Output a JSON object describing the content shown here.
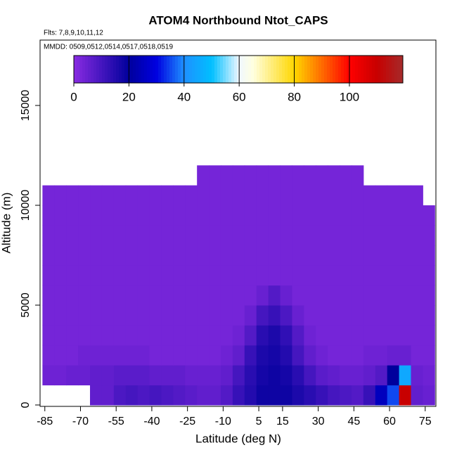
{
  "chart_data": {
    "type": "heatmap",
    "title": "ATOM4 Northbound Ntot_CAPS",
    "subtitle": "Flts: 7,8,9,10,11,12",
    "annotation": "MMDD: 0509,0512,0514,0517,0518,0519",
    "x_label": "Latitude (deg N)",
    "y_label": "Altitude (m)",
    "xlim": [
      -87,
      79.5
    ],
    "ylim": [
      -70,
      18275
    ],
    "xticks": [
      -85,
      -70,
      -55,
      -40,
      -25,
      -10,
      5,
      15,
      30,
      45,
      60,
      75
    ],
    "yticks": [
      0,
      5000,
      10000,
      15000
    ],
    "zlim": [
      0,
      119.4
    ],
    "zticks": [
      0,
      20,
      40,
      60,
      80,
      100
    ],
    "colorscale": [
      [
        0,
        "#8a2be2"
      ],
      [
        20,
        "#00009c"
      ],
      [
        30,
        "#0000e0"
      ],
      [
        40,
        "#1e90ff"
      ],
      [
        50,
        "#00bfff"
      ],
      [
        60,
        "#f0f8ff"
      ],
      [
        65,
        "#ffffe0"
      ],
      [
        80,
        "#ffd700"
      ],
      [
        100,
        "#ff0000"
      ],
      [
        110,
        "#c80000"
      ],
      [
        119.4,
        "#a52a2a"
      ]
    ],
    "lat_edges": [
      -86,
      -81,
      -76,
      -71,
      -66,
      -61,
      -56,
      -51,
      -46,
      -41,
      -36,
      -31,
      -26,
      -21,
      -16,
      -11,
      -6,
      -1,
      4,
      9,
      14,
      19,
      24,
      29,
      34,
      39,
      44,
      49,
      54,
      59,
      64,
      69,
      74,
      79
    ],
    "alt_edges": [
      0,
      1000,
      2000,
      3000,
      4000,
      5000,
      6000,
      7000,
      8000,
      9000,
      10000,
      11000,
      12000
    ],
    "z": [
      [
        null,
        null,
        null,
        null,
        6,
        6,
        9,
        10,
        9,
        10,
        9,
        8,
        7,
        6,
        6,
        8,
        12,
        15,
        18,
        18,
        18,
        16,
        14,
        12,
        10,
        9,
        8,
        12,
        25,
        35,
        110,
        6,
        5
      ],
      [
        4,
        4,
        5,
        5,
        6,
        6,
        7,
        7,
        7,
        6,
        6,
        6,
        5,
        5,
        5,
        6,
        10,
        14,
        17,
        18,
        17,
        14,
        10,
        7,
        6,
        5,
        5,
        6,
        8,
        20,
        45,
        5,
        4
      ],
      [
        3,
        3,
        3,
        4,
        4,
        4,
        4,
        4,
        4,
        3,
        3,
        3,
        3,
        3,
        3,
        4,
        6,
        12,
        16,
        17,
        15,
        10,
        6,
        4,
        3,
        3,
        3,
        4,
        4,
        5,
        5,
        3,
        3
      ],
      [
        3,
        3,
        3,
        3,
        3,
        3,
        3,
        3,
        3,
        3,
        3,
        3,
        3,
        3,
        3,
        3,
        4,
        8,
        14,
        16,
        13,
        8,
        4,
        3,
        3,
        3,
        3,
        3,
        3,
        3,
        3,
        3,
        3
      ],
      [
        3,
        3,
        3,
        3,
        3,
        3,
        3,
        3,
        3,
        3,
        3,
        3,
        3,
        3,
        3,
        3,
        3,
        5,
        10,
        12,
        9,
        5,
        3,
        3,
        3,
        3,
        3,
        3,
        3,
        3,
        3,
        3,
        3
      ],
      [
        3,
        3,
        3,
        3,
        3,
        3,
        3,
        3,
        3,
        3,
        3,
        3,
        3,
        3,
        3,
        3,
        3,
        3,
        5,
        8,
        5,
        3,
        3,
        3,
        3,
        3,
        3,
        3,
        3,
        3,
        3,
        3,
        3
      ],
      [
        3,
        3,
        3,
        3,
        3,
        3,
        3,
        3,
        3,
        3,
        3,
        3,
        3,
        3,
        3,
        3,
        3,
        3,
        3,
        3,
        3,
        3,
        3,
        3,
        3,
        3,
        3,
        3,
        3,
        3,
        3,
        3,
        3
      ],
      [
        3,
        3,
        3,
        3,
        3,
        3,
        3,
        3,
        3,
        3,
        3,
        3,
        3,
        3,
        3,
        3,
        3,
        3,
        3,
        3,
        3,
        3,
        3,
        3,
        3,
        3,
        3,
        3,
        3,
        3,
        3,
        3,
        3
      ],
      [
        3,
        3,
        3,
        3,
        3,
        3,
        3,
        3,
        3,
        3,
        3,
        3,
        3,
        3,
        3,
        3,
        3,
        3,
        3,
        3,
        3,
        3,
        3,
        3,
        3,
        3,
        3,
        3,
        3,
        3,
        3,
        3,
        3
      ],
      [
        3,
        3,
        3,
        3,
        3,
        3,
        3,
        3,
        3,
        3,
        3,
        3,
        3,
        3,
        3,
        3,
        3,
        3,
        3,
        3,
        3,
        3,
        3,
        3,
        3,
        3,
        3,
        3,
        3,
        3,
        3,
        3,
        3
      ],
      [
        3,
        3,
        3,
        3,
        3,
        3,
        3,
        3,
        3,
        3,
        3,
        3,
        3,
        3,
        3,
        3,
        3,
        3,
        3,
        3,
        3,
        3,
        3,
        3,
        3,
        3,
        3,
        3,
        3,
        3,
        3,
        3,
        null
      ],
      [
        null,
        null,
        null,
        null,
        null,
        null,
        null,
        null,
        null,
        null,
        null,
        null,
        null,
        3,
        3,
        3,
        3,
        3,
        3,
        3,
        3,
        3,
        3,
        3,
        3,
        3,
        3,
        null,
        null,
        null,
        null,
        null,
        null
      ]
    ]
  }
}
